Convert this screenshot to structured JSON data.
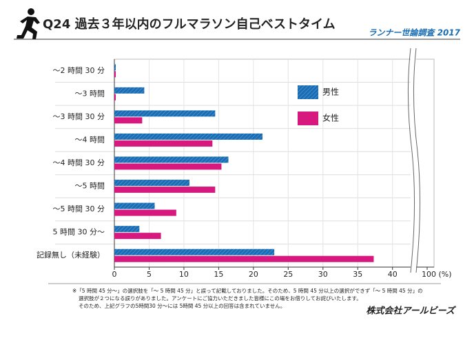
{
  "chart_data": {
    "type": "hbar",
    "title": "Q24 過去３年以内のフルマラソン自己ベストタイム",
    "subtitle": "ランナー世論調査 2017",
    "categories": [
      "～2 時間 30 分",
      "～3 時間",
      "～3 時間 30 分",
      "～4 時間",
      "～4 時間 30 分",
      "～5 時間",
      "～5 時間 30 分",
      "5 時間 30 分～",
      "記録無し（未経験）"
    ],
    "series": [
      {
        "name": "男性",
        "color": "#1a6db3",
        "hatch": true,
        "values": [
          0.2,
          4.3,
          14.5,
          21.3,
          16.4,
          10.8,
          5.8,
          3.6,
          23.0
        ]
      },
      {
        "name": "女性",
        "color": "#d6187f",
        "hatch": false,
        "values": [
          0.2,
          0.2,
          4.0,
          14.1,
          15.4,
          14.5,
          8.9,
          6.7,
          37.3
        ]
      }
    ],
    "xlim": [
      0,
      100
    ],
    "xbreak": [
      43,
      98
    ],
    "xticks": [
      0,
      5,
      10,
      15,
      20,
      25,
      30,
      35,
      40,
      {
        "value": 100,
        "label": "100 (%)"
      }
    ],
    "grid": true,
    "legend": "upper right",
    "notes": [
      "※「5 時間 45 分～」の選択肢を「～ 5 時間 45 分」と誤って記載しておりました。そのため、5 時間 45 分以上の選択ができず「～ 5 時間 45 分」の",
      "選択肢が２つになる誤りがありました。アンケートにご協力いただきました皆様にこの場をお借りしてお詫びいたします。",
      "そのため、上記グラフの5時間30 分～には 5時間 45 分以上の回答は含まれていません。"
    ],
    "company": "株式会社アールビーズ"
  }
}
